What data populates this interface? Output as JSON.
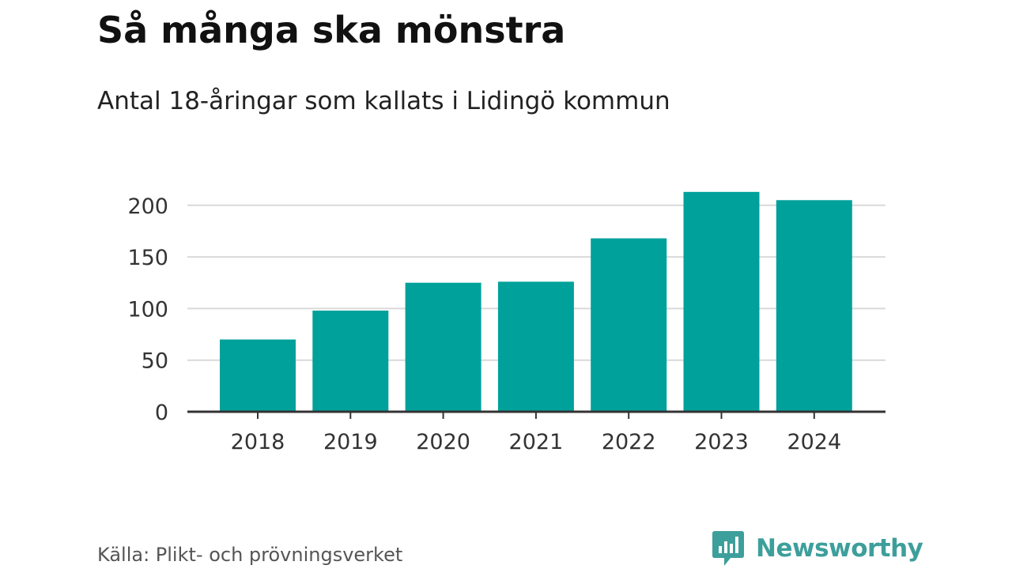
{
  "header": {
    "title": "Så många ska mönstra",
    "subtitle": "Antal 18-åringar som kallats i Lidingö kommun"
  },
  "footer": {
    "source": "Källa: Plikt- och prövningsverket",
    "brand": "Newsworthy"
  },
  "colors": {
    "bar": "#00a19b",
    "grid": "#d9d9d9",
    "axis": "#333333",
    "brand": "#3d9f9b"
  },
  "icons": {
    "brand_logo": "bar-chart-speech-bubble-icon"
  },
  "chart_data": {
    "type": "bar",
    "title": "Så många ska mönstra",
    "subtitle": "Antal 18-åringar som kallats i Lidingö kommun",
    "categories": [
      "2018",
      "2019",
      "2020",
      "2021",
      "2022",
      "2023",
      "2024"
    ],
    "values": [
      70,
      98,
      125,
      126,
      168,
      213,
      205
    ],
    "ylim": [
      0,
      220
    ],
    "yticks": [
      0,
      50,
      100,
      150,
      200
    ],
    "xlabel": "",
    "ylabel": "",
    "grid": true,
    "legend": "none"
  }
}
